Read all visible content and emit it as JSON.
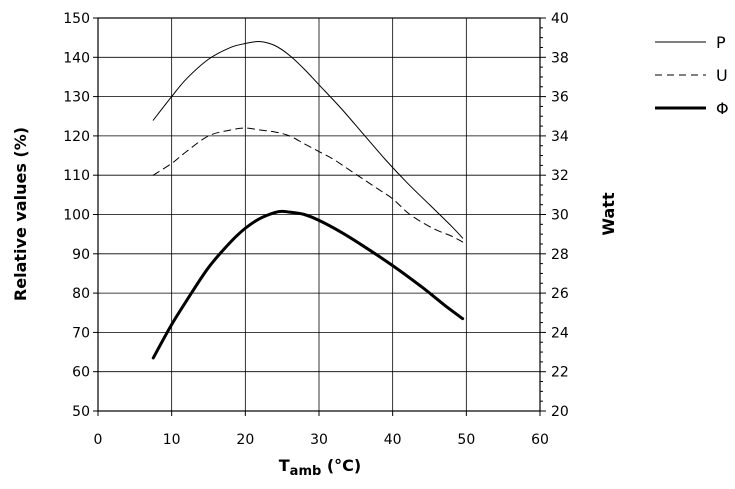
{
  "chart_data": {
    "type": "line",
    "xlabel": "T",
    "xlabel_sub": "amb",
    "xlabel_unit": " (°C)",
    "ylabel_left": "Relative values (%)",
    "ylabel_right": "Watt",
    "xlim": [
      0,
      60
    ],
    "ylim_left": [
      50,
      150
    ],
    "ylim_right": [
      20,
      40
    ],
    "x_ticks": [
      0,
      10,
      20,
      30,
      40,
      50,
      60
    ],
    "y_ticks_left": [
      50,
      60,
      70,
      80,
      90,
      100,
      110,
      120,
      130,
      140,
      150
    ],
    "y_ticks_right": [
      20,
      22,
      24,
      26,
      28,
      30,
      32,
      34,
      36,
      38,
      40
    ],
    "grid": true,
    "legend_position": "outside-right",
    "series": [
      {
        "name": "P",
        "style": "solid",
        "stroke_width": 1,
        "x": [
          7.5,
          10,
          12,
          15,
          18,
          20,
          22,
          24,
          26,
          28,
          30,
          33,
          36,
          39,
          42,
          45,
          48,
          49.5
        ],
        "y": [
          124,
          130,
          134.5,
          139.5,
          142.5,
          143.5,
          144,
          143,
          140.5,
          137,
          133,
          127,
          120.5,
          114,
          108,
          102.5,
          97,
          94
        ]
      },
      {
        "name": "U",
        "style": "dashed",
        "stroke_width": 1,
        "x": [
          7.5,
          10,
          12,
          15,
          18,
          20,
          22,
          24,
          26,
          28,
          30,
          32,
          34,
          36,
          38,
          40,
          42,
          44,
          46,
          48,
          49.5
        ],
        "y": [
          110,
          113,
          116,
          120,
          121.5,
          122,
          121.5,
          121,
          120,
          118,
          116,
          114,
          111.5,
          109,
          106.5,
          104,
          100.5,
          98,
          96,
          94.5,
          93
        ]
      },
      {
        "name": "Φ",
        "style": "solid",
        "stroke_width": 3,
        "x": [
          7.5,
          10,
          12,
          15,
          18,
          20,
          22,
          24,
          25,
          26,
          28,
          30,
          33,
          36,
          40,
          44,
          47,
          49.5
        ],
        "y": [
          63.5,
          72,
          78,
          86.5,
          93,
          96.5,
          99,
          100.5,
          100.8,
          100.6,
          100,
          98.5,
          95.5,
          92,
          87,
          81.5,
          77,
          73.5
        ]
      }
    ]
  }
}
